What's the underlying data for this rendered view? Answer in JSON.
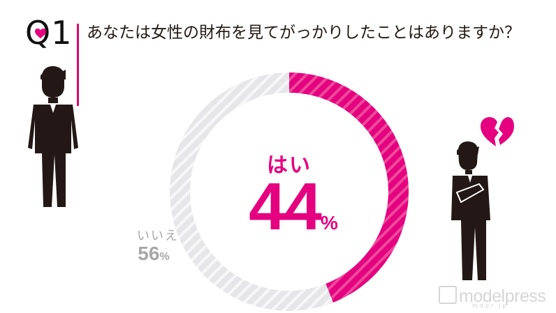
{
  "header": {
    "question_number": "Q1",
    "question_text": "あなたは女性の財布を見てがっかりしたことはありますか？"
  },
  "chart_data": {
    "type": "pie",
    "labels": [
      "はい",
      "いいえ"
    ],
    "values": [
      44,
      56
    ],
    "value_labels": [
      "44",
      "56"
    ],
    "unit": "%",
    "colors": [
      "#e4007f",
      "#e6e6e8"
    ],
    "stripe_colors": [
      "#ed4a9c",
      "#f7f7f8"
    ]
  },
  "icons": {
    "heart": "heart-icon",
    "broken_heart": "broken-heart-icon",
    "person_standing": "standing-man-icon",
    "person_dejected": "dejected-man-icon"
  },
  "watermark": {
    "text": "modelpress",
    "sub": "mdpr.jp"
  }
}
